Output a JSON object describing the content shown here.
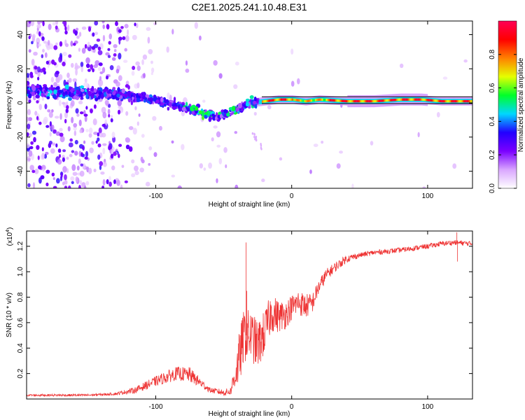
{
  "title": "C2E1.2025.241.10.48.E31",
  "chart_data": [
    {
      "type": "heatmap",
      "name": "spectrogram",
      "xlabel": "Height of straight line (km)",
      "ylabel": "Frequency (Hz)",
      "xlim": [
        -195,
        133
      ],
      "ylim": [
        -50,
        48
      ],
      "xticks": [
        -100,
        0,
        100
      ],
      "xtick_labels": [
        "-100",
        "0",
        "100"
      ],
      "yticks": [
        -40,
        -20,
        0,
        20,
        40
      ],
      "ytick_labels": [
        "-40",
        "-20",
        "0",
        "20",
        "40"
      ],
      "ridge": {
        "x": [
          -195,
          -160,
          -130,
          -110,
          -90,
          -70,
          -55,
          -40,
          -30,
          -20,
          -10,
          0,
          10,
          20,
          40,
          60,
          80,
          95,
          110,
          133
        ],
        "freq": [
          7,
          6,
          5,
          3,
          0,
          -5,
          -8,
          -4,
          0,
          1,
          2,
          2,
          1,
          2,
          1,
          1,
          2,
          2,
          1,
          1
        ]
      },
      "colorbar": {
        "label": "Normalized spectral amplitude",
        "range": [
          0,
          1
        ],
        "ticks": [
          0.0,
          0.2,
          0.4,
          0.6,
          0.8
        ],
        "tick_labels": [
          "0.0",
          "0.2",
          "0.4",
          "0.6",
          "0.8"
        ],
        "colormap": [
          "#ffffff",
          "#d9a6ff",
          "#7b00ff",
          "#2200ff",
          "#00d7ff",
          "#00ff2a",
          "#e5ff00",
          "#ff8000",
          "#ff0000",
          "#ff0055"
        ]
      }
    },
    {
      "type": "line",
      "name": "snr",
      "xlabel": "Height of straight line (km)",
      "ylabel": "SNR (10 * v/v)",
      "multiplier_label": "(x10",
      "multiplier_exp": "4",
      "multiplier_close": ")",
      "xlim": [
        -195,
        133
      ],
      "ylim": [
        0,
        1.32
      ],
      "xticks": [
        -100,
        0,
        100
      ],
      "xtick_labels": [
        "-100",
        "0",
        "100"
      ],
      "yticks": [
        0.2,
        0.4,
        0.6,
        0.8,
        1.0,
        1.2
      ],
      "ytick_labels": [
        "0.2",
        "0.4",
        "0.6",
        "0.8",
        "1.0",
        "1.2"
      ],
      "color": "#ee3333",
      "trend": {
        "x": [
          -195,
          -150,
          -130,
          -115,
          -100,
          -85,
          -75,
          -60,
          -50,
          -45,
          -40,
          -35,
          -30,
          -25,
          -20,
          -15,
          -10,
          -5,
          0,
          5,
          10,
          15,
          20,
          25,
          30,
          40,
          50,
          60,
          80,
          100,
          110,
          120,
          133
        ],
        "y": [
          0.03,
          0.03,
          0.04,
          0.07,
          0.14,
          0.2,
          0.19,
          0.07,
          0.05,
          0.06,
          0.25,
          0.5,
          0.5,
          0.42,
          0.52,
          0.68,
          0.65,
          0.66,
          0.72,
          0.76,
          0.73,
          0.75,
          0.88,
          0.97,
          1.02,
          1.1,
          1.13,
          1.15,
          1.17,
          1.2,
          1.22,
          1.23,
          1.22
        ]
      },
      "noise": {
        "x": [
          -195,
          -130,
          -110,
          -90,
          -75,
          -60,
          -45,
          -38,
          -30,
          -20,
          -10,
          0,
          10,
          20,
          30,
          50,
          133
        ],
        "amp": [
          0.008,
          0.01,
          0.03,
          0.05,
          0.06,
          0.02,
          0.03,
          0.22,
          0.2,
          0.18,
          0.13,
          0.1,
          0.1,
          0.06,
          0.04,
          0.02,
          0.02
        ]
      },
      "spikes": [
        {
          "x": -33.5,
          "y": 1.23
        },
        {
          "x": -33,
          "y": 0.85
        },
        {
          "x": 121.5,
          "y": 1.31
        },
        {
          "x": 122,
          "y": 1.08
        }
      ]
    }
  ]
}
